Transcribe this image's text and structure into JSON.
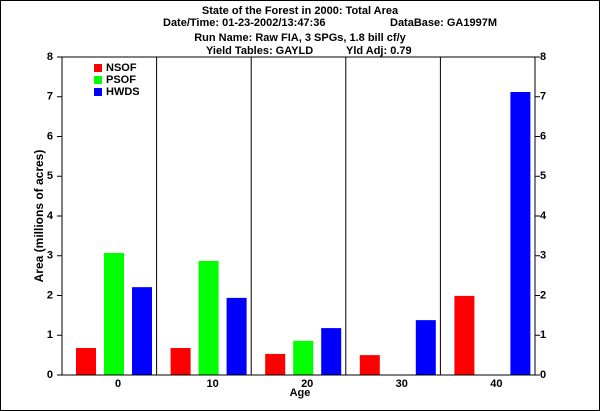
{
  "chart_data": {
    "type": "bar",
    "title": "State of the Forest in 2000: Total Area",
    "subtitle": [
      "Date/Time: 01-23-2002/13:47:36",
      "DataBase: GA1997M",
      "Run Name: Raw FIA, 3 SPGs, 1.8 bill cf/y",
      "Yield Tables: GAYLD",
      "Yld Adj: 0.79"
    ],
    "x_label": "Age",
    "y_label": "Area (millions of acres)",
    "categories": [
      "0",
      "10",
      "20",
      "30",
      "40"
    ],
    "series": [
      {
        "name": "NSOF",
        "color": "#ff0000",
        "values": [
          0.68,
          0.68,
          0.53,
          0.5,
          1.99
        ]
      },
      {
        "name": "PSOF",
        "color": "#00ff00",
        "values": [
          3.07,
          2.87,
          0.86,
          0,
          0
        ]
      },
      {
        "name": "HWDS",
        "color": "#0000ff",
        "values": [
          2.21,
          1.94,
          1.18,
          1.38,
          7.12
        ]
      }
    ],
    "ylim": [
      0,
      8
    ],
    "yticks": [
      0,
      1,
      2,
      3,
      4,
      5,
      6,
      7,
      8
    ],
    "y2lim": [
      0,
      8
    ],
    "y2ticks": [
      0,
      1,
      2,
      3,
      4,
      5,
      6,
      7,
      8
    ],
    "legend": "upper left"
  }
}
